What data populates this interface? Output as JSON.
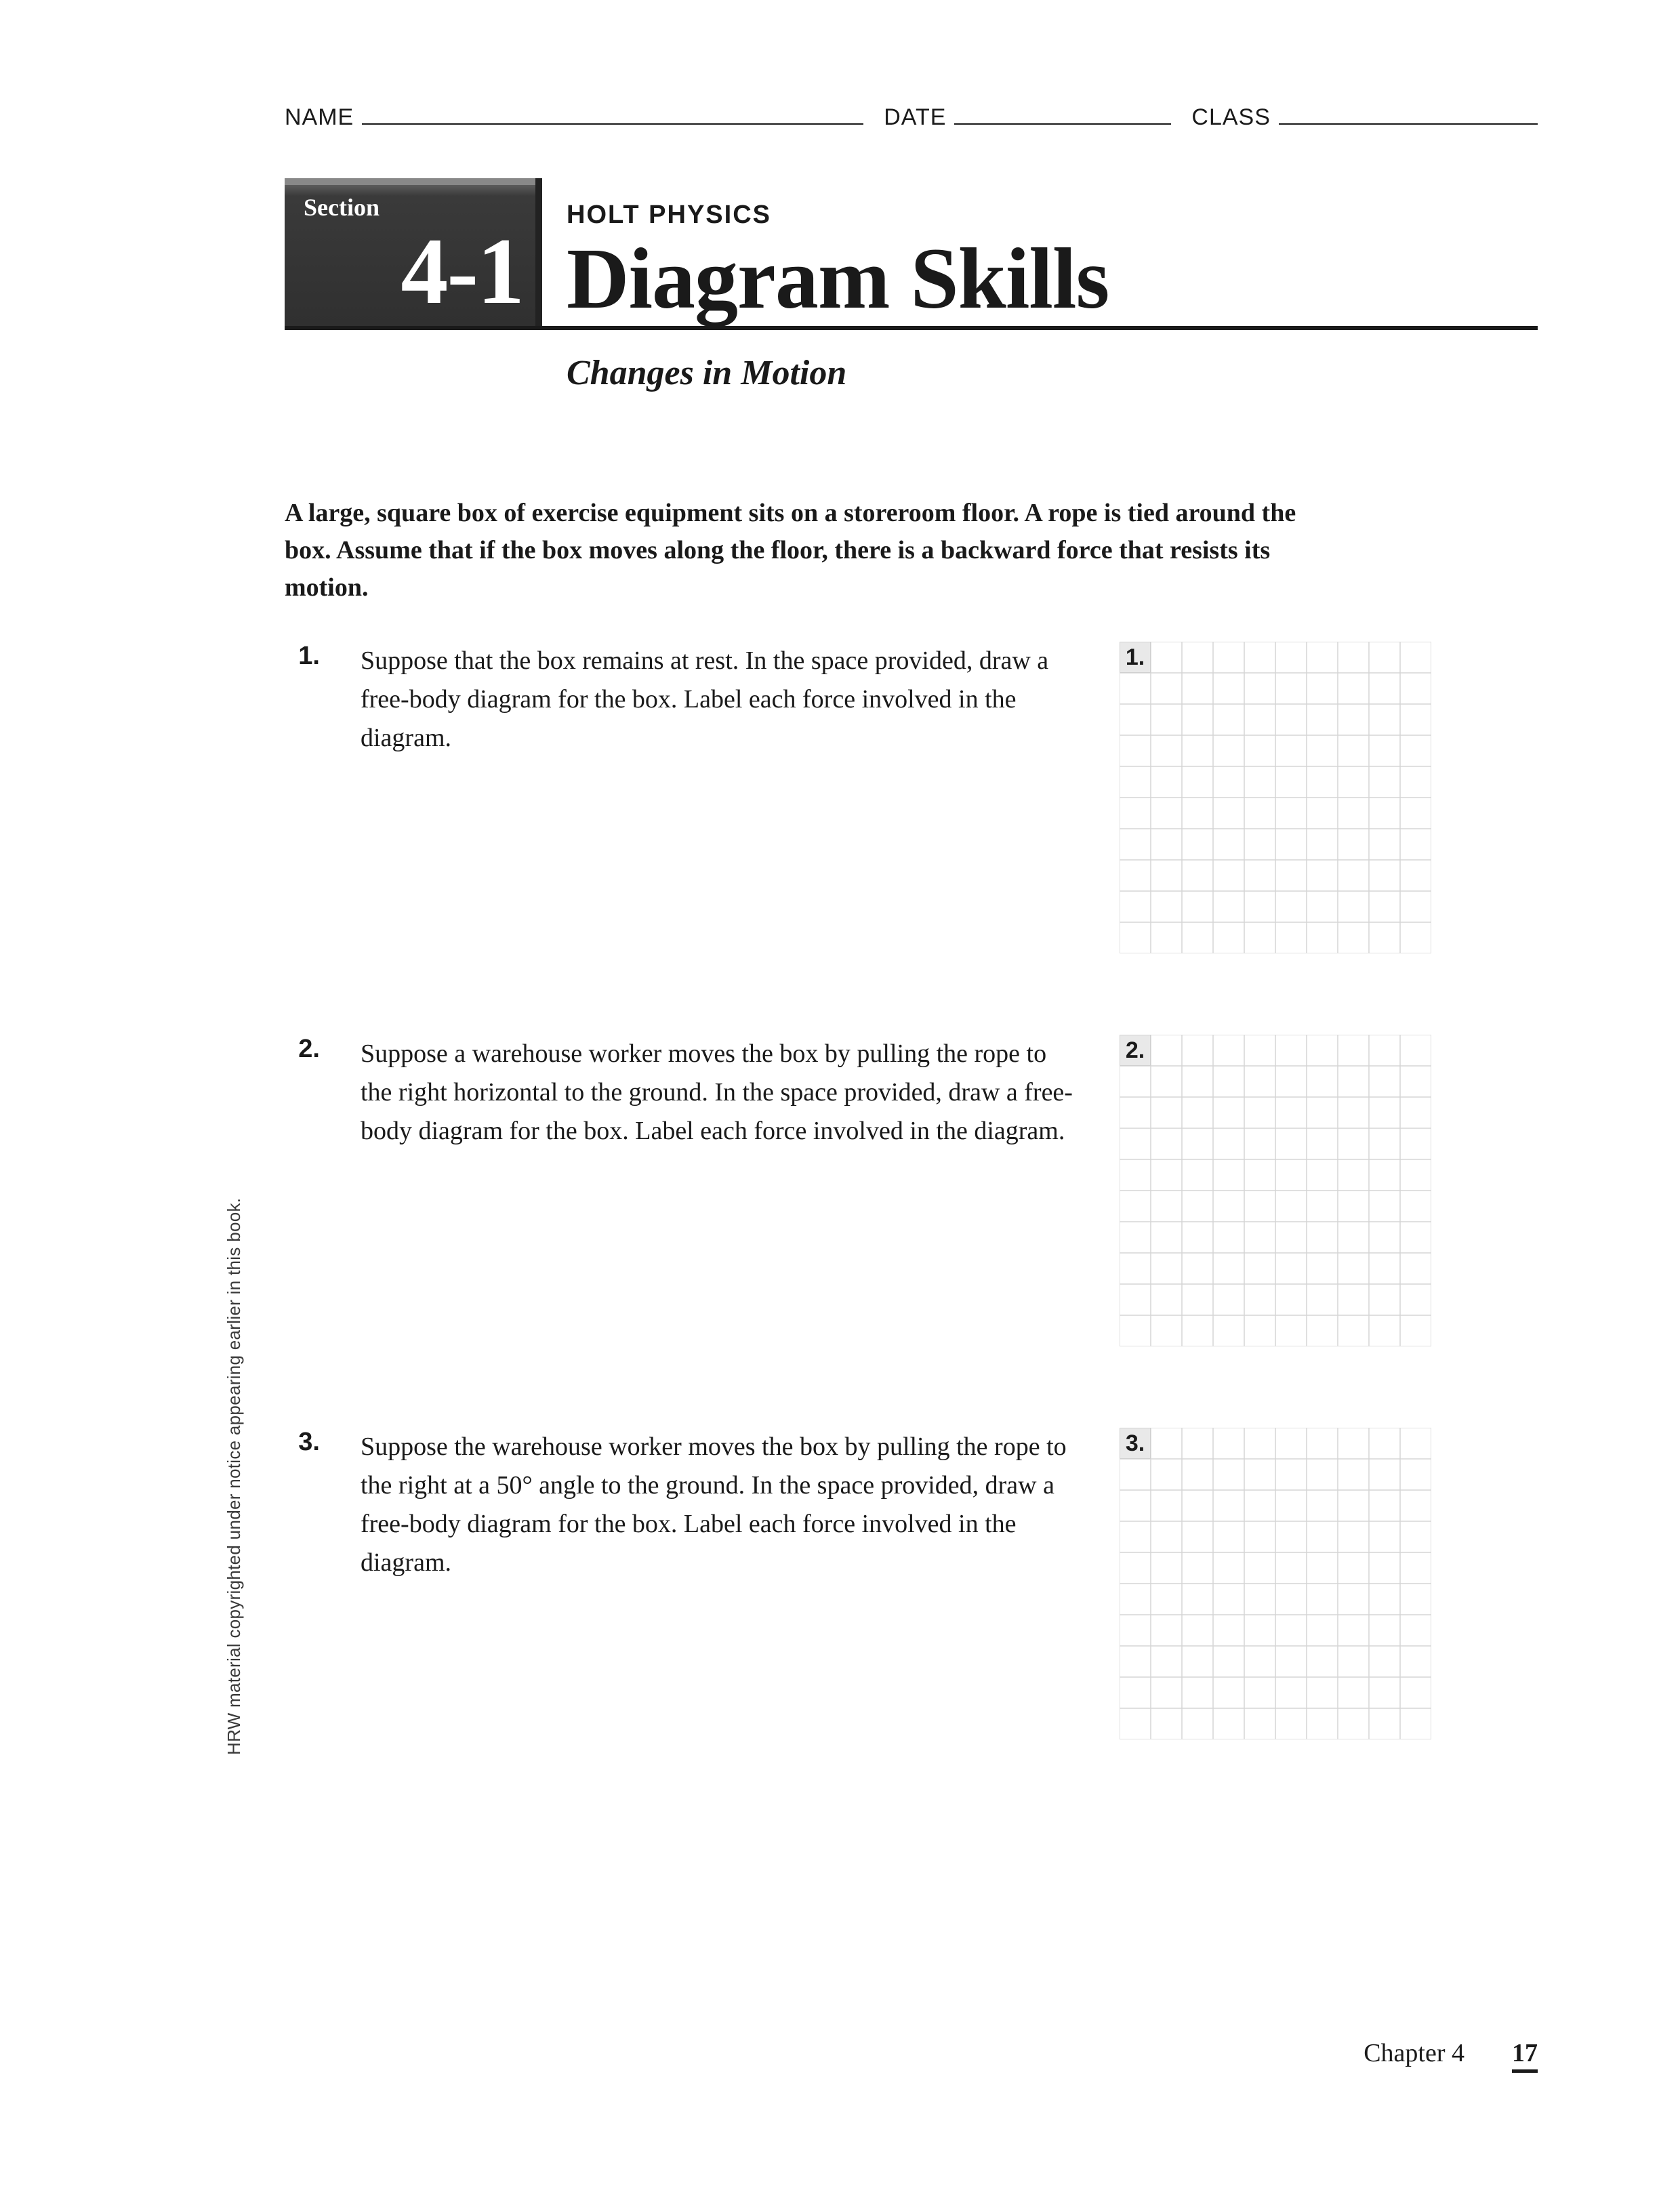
{
  "header": {
    "name_label": "NAME",
    "date_label": "DATE",
    "class_label": "CLASS"
  },
  "banner": {
    "section_label": "Section",
    "section_number": "4-1",
    "overline": "HOLT PHYSICS",
    "title": "Diagram Skills",
    "subtitle": "Changes in Motion"
  },
  "intro": "A large, square box of exercise equipment sits on a storeroom floor. A rope is tied around the box. Assume that if the box moves along the floor, there is a backward force that resists its motion.",
  "questions": [
    {
      "num": "1.",
      "text": "Suppose that the box remains at rest. In the space provided, draw a free-body diagram for the box. Label each force involved in the diagram.",
      "grid_label": "1."
    },
    {
      "num": "2.",
      "text": "Suppose a warehouse worker moves the box by pulling the rope to the right horizontal to the ground. In the space provided, draw a free-body diagram for the box. Label each force involved in the diagram.",
      "grid_label": "2."
    },
    {
      "num": "3.",
      "text": "Suppose the warehouse worker moves the box by pulling the rope to the right at a 50° angle to the ground. In the space provided, draw a free-body diagram for the box. Label each force involved in the diagram.",
      "grid_label": "3."
    }
  ],
  "grid": {
    "cols": 10,
    "rows": 10,
    "cell": 46,
    "stroke": "#d6d6d6",
    "stroke_width": 1.5,
    "bg": "#ffffff"
  },
  "copyright": "HRW material copyrighted under notice appearing earlier in this book.",
  "footer": {
    "chapter": "Chapter 4",
    "page": "17"
  }
}
